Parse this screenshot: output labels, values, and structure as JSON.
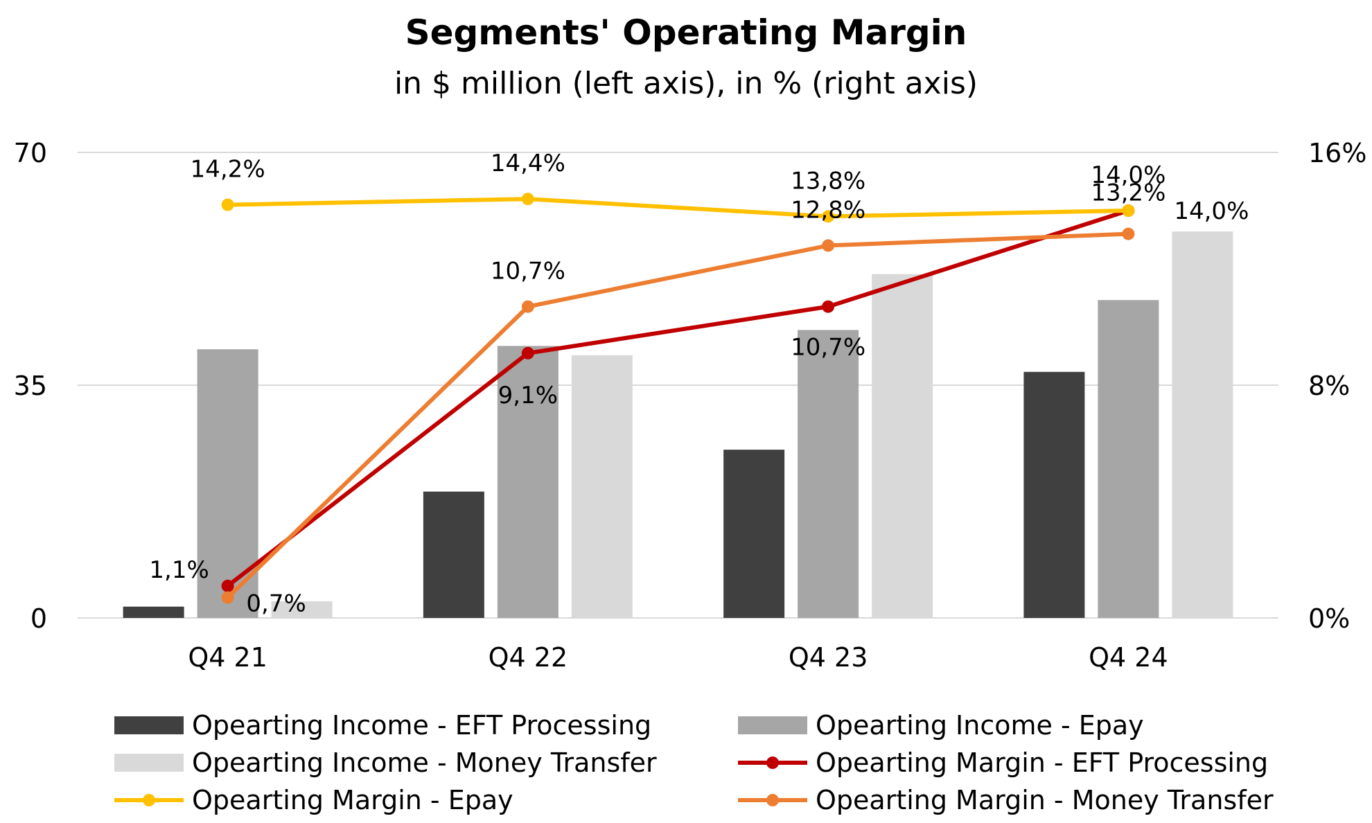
{
  "chart_data": {
    "type": "bar",
    "title": "Segments' Operating Margin",
    "subtitle": "in $ million (left axis), in % (right axis)",
    "categories": [
      "Q4 21",
      "Q4 22",
      "Q4 23",
      "Q4 24"
    ],
    "y_left": {
      "range": [
        0,
        70
      ],
      "ticks": [
        "0",
        "35",
        "70"
      ]
    },
    "y_right": {
      "range": [
        0,
        16
      ],
      "ticks": [
        "0%",
        "8%",
        "16%"
      ]
    },
    "grid": true,
    "legend_position": "bottom",
    "bar_series": [
      {
        "name": "Opearting Income - EFT Processing",
        "color": "#404040",
        "values": [
          1.7,
          19.0,
          25.3,
          37.0
        ]
      },
      {
        "name": "Opearting Income - Epay",
        "color": "#A6A6A6",
        "values": [
          40.4,
          40.9,
          43.3,
          47.8
        ]
      },
      {
        "name": "Opearting Income - Money Transfer",
        "color": "#D9D9D9",
        "values": [
          2.5,
          39.5,
          51.7,
          58.1
        ]
      }
    ],
    "line_series": [
      {
        "name": "Opearting Margin - EFT Processing",
        "color": "#C00000",
        "values": [
          1.1,
          9.1,
          10.7,
          14.0
        ],
        "labels": [
          "1,1%",
          "9,1%",
          "10,7%",
          "14,0%"
        ]
      },
      {
        "name": "Opearting Margin - Epay",
        "color": "#FFC000",
        "values": [
          14.2,
          14.4,
          13.8,
          14.0
        ],
        "labels": [
          "14,2%",
          "14,4%",
          "13,8%",
          "14,0%"
        ]
      },
      {
        "name": "Opearting Margin - Money Transfer",
        "color": "#ED7D31",
        "values": [
          0.7,
          10.7,
          12.8,
          13.2
        ],
        "labels": [
          "0,7%",
          "10,7%",
          "12,8%",
          "13,2%"
        ]
      }
    ]
  }
}
